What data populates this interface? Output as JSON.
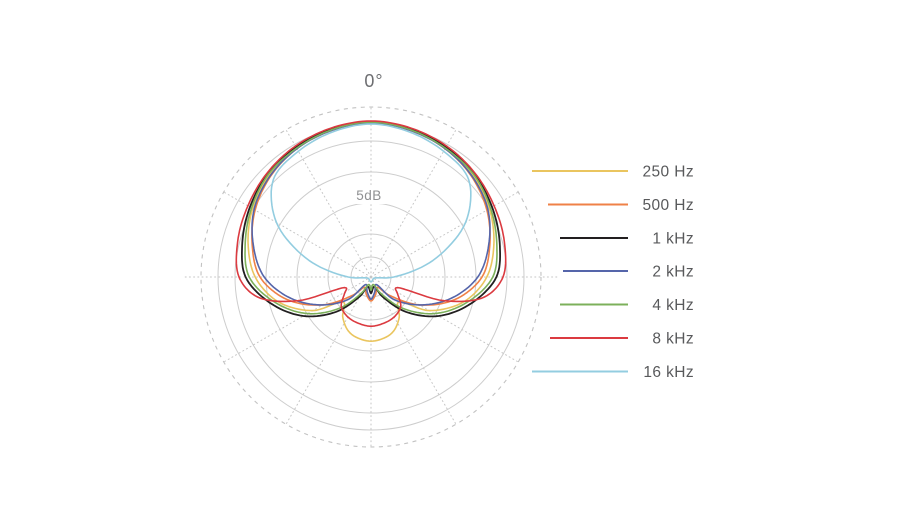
{
  "chart_data": {
    "type": "polar-line",
    "description_labels": {
      "angle_label": "0°",
      "radial_scale_label": "5dB"
    },
    "grid": {
      "db_per_ring": 5,
      "solid_rings": 6,
      "outer_ring_style": "dashed",
      "radial_line_step_deg": 30,
      "legend_position": "right"
    },
    "series": [
      {
        "id": "250hz",
        "label": "250 Hz",
        "color": "#EAC55F",
        "samples_deg_db": [
          [
            0,
            -0.2
          ],
          [
            15,
            -0.5
          ],
          [
            30,
            -1.2
          ],
          [
            45,
            -2.0
          ],
          [
            60,
            -3.2
          ],
          [
            75,
            -4.8
          ],
          [
            90,
            -6.7
          ],
          [
            105,
            -10.0
          ],
          [
            120,
            -14.8
          ],
          [
            133,
            -19.8
          ],
          [
            145,
            -17.8
          ],
          [
            160,
            -16.0
          ],
          [
            180,
            -15.3
          ]
        ]
      },
      {
        "id": "500hz",
        "label": "500 Hz",
        "color": "#EF8147",
        "samples_deg_db": [
          [
            0,
            -0.2
          ],
          [
            15,
            -0.7
          ],
          [
            30,
            -1.3
          ],
          [
            45,
            -2.3
          ],
          [
            60,
            -3.7
          ],
          [
            75,
            -5.5
          ],
          [
            90,
            -7.5
          ],
          [
            105,
            -11.5
          ],
          [
            120,
            -16.7
          ],
          [
            135,
            -21.7
          ],
          [
            150,
            -24.0
          ],
          [
            165,
            -23.0
          ],
          [
            180,
            -22.0
          ]
        ]
      },
      {
        "id": "1khz",
        "label": "1 kHz",
        "color": "#221F20",
        "samples_deg_db": [
          [
            0,
            -0.1
          ],
          [
            15,
            -0.4
          ],
          [
            30,
            -1.0
          ],
          [
            45,
            -1.7
          ],
          [
            60,
            -2.7
          ],
          [
            75,
            -3.8
          ],
          [
            90,
            -5.1
          ],
          [
            105,
            -8.8
          ],
          [
            120,
            -13.0
          ],
          [
            135,
            -17.8
          ],
          [
            150,
            -22.3
          ],
          [
            163,
            -24.3
          ],
          [
            180,
            -23.3
          ]
        ]
      },
      {
        "id": "2khz",
        "label": "2 kHz",
        "color": "#5565AA",
        "samples_deg_db": [
          [
            0,
            -0.3
          ],
          [
            15,
            -0.7
          ],
          [
            30,
            -1.3
          ],
          [
            45,
            -2.2
          ],
          [
            60,
            -3.5
          ],
          [
            75,
            -5.7
          ],
          [
            90,
            -8.2
          ],
          [
            105,
            -12.2
          ],
          [
            120,
            -16.7
          ],
          [
            135,
            -20.8
          ],
          [
            148,
            -24.5
          ],
          [
            165,
            -23.5
          ],
          [
            180,
            -22.3
          ]
        ]
      },
      {
        "id": "4khz",
        "label": "4 kHz",
        "color": "#7CB05B",
        "samples_deg_db": [
          [
            0,
            -0.2
          ],
          [
            15,
            -0.6
          ],
          [
            30,
            -1.2
          ],
          [
            45,
            -1.8
          ],
          [
            60,
            -3.0
          ],
          [
            75,
            -4.3
          ],
          [
            90,
            -5.7
          ],
          [
            105,
            -9.5
          ],
          [
            120,
            -13.8
          ],
          [
            135,
            -18.7
          ],
          [
            150,
            -23.0
          ],
          [
            165,
            -24.7
          ],
          [
            180,
            -23.8
          ]
        ]
      },
      {
        "id": "8khz",
        "label": "8 kHz",
        "color": "#DB3A40",
        "samples_deg_db": [
          [
            0,
            0.0
          ],
          [
            15,
            -0.3
          ],
          [
            30,
            -0.8
          ],
          [
            45,
            -1.5
          ],
          [
            60,
            -2.3
          ],
          [
            75,
            -3.0
          ],
          [
            90,
            -4.0
          ],
          [
            100,
            -6.8
          ],
          [
            108,
            -13.2
          ],
          [
            114,
            -21.5
          ],
          [
            122,
            -20.8
          ],
          [
            135,
            -19.0
          ],
          [
            150,
            -18.3
          ],
          [
            165,
            -18.0
          ],
          [
            180,
            -17.8
          ]
        ]
      },
      {
        "id": "16khz",
        "label": "16 kHz",
        "color": "#93CDE0",
        "samples_deg_db": [
          [
            0,
            -0.5
          ],
          [
            15,
            -1.0
          ],
          [
            30,
            -1.8
          ],
          [
            45,
            -3.0
          ],
          [
            60,
            -7.8
          ],
          [
            75,
            -15.3
          ],
          [
            90,
            -22.2
          ],
          [
            98,
            -25.0
          ],
          [
            115,
            -25.5
          ],
          [
            140,
            -25.5
          ],
          [
            165,
            -25.3
          ],
          [
            180,
            -25.2
          ]
        ]
      }
    ]
  }
}
